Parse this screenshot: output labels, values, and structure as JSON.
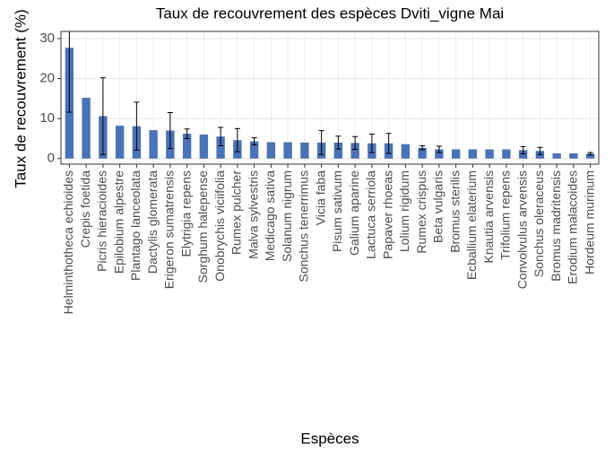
{
  "chart_data": {
    "type": "bar",
    "title": "Taux de recouvrement des espèces Dviti_vigne Mai",
    "x_label": "Espèces",
    "y_label": "Taux de recouvrement (%)",
    "categories": [
      "Helminthotheca echioides",
      "Crepis foetida",
      "Picris hieracioides",
      "Epilobium alpestre",
      "Plantago lanceolata",
      "Dactylis glomerata",
      "Erigeron sumatrensis",
      "Elytrigia repens",
      "Sorghum halepense",
      "Onobrychis viciifolia",
      "Rumex pulcher",
      "Malva sylvestris",
      "Medicago sativa",
      "Solanum nigrum",
      "Sonchus tenerrimus",
      "Vicia faba",
      "Pisum sativum",
      "Galium aparine",
      "Lactuca serriola",
      "Papaver rhoeas",
      "Lolium rigidum",
      "Rumex crispus",
      "Beta vulgaris",
      "Bromus sterilis",
      "Ecballium elaterium",
      "Knautia arvensis",
      "Trifolium repens",
      "Convolvulus arvensis",
      "Sonchus oleraceus",
      "Bromus madritensis",
      "Erodium malacoides",
      "Hordeum murinum"
    ],
    "values": [
      27.7,
      15.2,
      10.6,
      8.2,
      8.1,
      7.1,
      7.0,
      6.2,
      6.0,
      5.5,
      4.6,
      4.3,
      4.1,
      4.1,
      4.0,
      4.0,
      4.0,
      3.9,
      3.8,
      3.8,
      3.6,
      2.7,
      2.3,
      2.3,
      2.3,
      2.3,
      2.3,
      2.1,
      1.9,
      1.3,
      1.3,
      1.2
    ],
    "errors": [
      16.1,
      null,
      9.6,
      null,
      6.0,
      null,
      4.5,
      1.2,
      null,
      2.3,
      2.9,
      0.9,
      null,
      null,
      null,
      3.0,
      1.6,
      1.6,
      2.3,
      2.5,
      null,
      0.5,
      0.8,
      null,
      null,
      null,
      null,
      0.9,
      0.9,
      null,
      null,
      0.3
    ],
    "color": "#4a72b8",
    "ylim": [
      -1.4,
      31.8
    ],
    "yticks": [
      0,
      10,
      20,
      30
    ],
    "grid": true
  }
}
